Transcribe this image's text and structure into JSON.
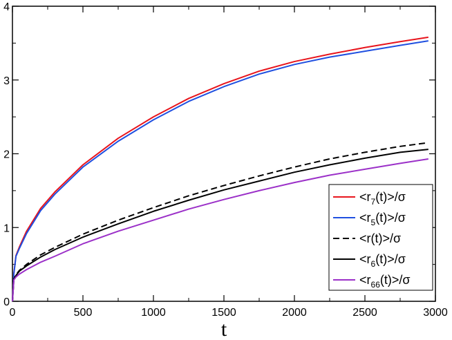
{
  "chart_data": {
    "type": "line",
    "title": "",
    "xlabel": "t",
    "ylabel": "",
    "xlim": [
      0,
      3000
    ],
    "ylim": [
      0,
      4
    ],
    "x_ticks": [
      "0",
      "500",
      "1000",
      "1500",
      "2000",
      "2500",
      "3000"
    ],
    "y_ticks": [
      "0",
      "1",
      "2",
      "3",
      "4"
    ],
    "grid": false,
    "legend_position": "bottom-right",
    "x": [
      0,
      10,
      25,
      50,
      100,
      200,
      300,
      500,
      750,
      1000,
      1250,
      1500,
      1750,
      2000,
      2250,
      2500,
      2750,
      2950
    ],
    "series": [
      {
        "name": "<r7(t)>/σ",
        "label_main": "<r",
        "label_sub": "7",
        "label_rest": "(t)>/σ",
        "color": "#e8141c",
        "dash": "solid",
        "values": [
          0,
          0.38,
          0.62,
          0.74,
          0.95,
          1.26,
          1.48,
          1.85,
          2.21,
          2.5,
          2.75,
          2.95,
          3.12,
          3.25,
          3.35,
          3.44,
          3.52,
          3.58
        ]
      },
      {
        "name": "<r5(t)>/σ",
        "label_main": "<r",
        "label_sub": "5",
        "label_rest": "(t)>/σ",
        "color": "#1f4fe0",
        "dash": "solid",
        "values": [
          0,
          0.37,
          0.61,
          0.72,
          0.92,
          1.23,
          1.45,
          1.82,
          2.17,
          2.46,
          2.71,
          2.91,
          3.08,
          3.21,
          3.31,
          3.39,
          3.47,
          3.53
        ]
      },
      {
        "name": "<r(t)>/σ",
        "label_main": "<r(t)>/σ",
        "label_sub": "",
        "label_rest": "",
        "color": "#000000",
        "dash": "dashed",
        "values": [
          0,
          0.3,
          0.36,
          0.42,
          0.5,
          0.63,
          0.73,
          0.91,
          1.1,
          1.27,
          1.43,
          1.57,
          1.7,
          1.82,
          1.93,
          2.02,
          2.1,
          2.15
        ]
      },
      {
        "name": "<r6(t)>/σ",
        "label_main": "<r",
        "label_sub": "6",
        "label_rest": "(t)>/σ",
        "color": "#000000",
        "dash": "solid",
        "values": [
          0,
          0.3,
          0.35,
          0.41,
          0.48,
          0.6,
          0.7,
          0.87,
          1.05,
          1.22,
          1.37,
          1.51,
          1.63,
          1.75,
          1.85,
          1.94,
          2.02,
          2.06
        ]
      },
      {
        "name": "<r66(t)>/σ",
        "label_main": "<r",
        "label_sub": "66",
        "label_rest": "(t)>/σ",
        "color": "#9b30c8",
        "dash": "solid",
        "values": [
          0,
          0.29,
          0.33,
          0.37,
          0.43,
          0.53,
          0.61,
          0.78,
          0.95,
          1.1,
          1.25,
          1.38,
          1.5,
          1.61,
          1.71,
          1.79,
          1.87,
          1.93
        ]
      }
    ]
  }
}
